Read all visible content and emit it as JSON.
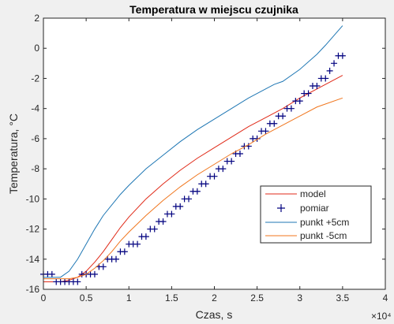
{
  "chart_data": {
    "type": "line",
    "title": "Temperatura w miejscu czujnika",
    "xlabel": "Czas, s",
    "ylabel": "Temperatura, °C",
    "x_exponent_label": "×10⁴",
    "xlim": [
      0,
      40000
    ],
    "ylim": [
      -16,
      2
    ],
    "xticks": [
      0,
      5000,
      10000,
      15000,
      20000,
      25000,
      30000,
      35000,
      40000
    ],
    "xtick_labels": [
      "0",
      "0.5",
      "1",
      "1.5",
      "2",
      "2.5",
      "3",
      "3.5",
      "4"
    ],
    "yticks": [
      -16,
      -14,
      -12,
      -10,
      -8,
      -6,
      -4,
      -2,
      0,
      2
    ],
    "ytick_labels": [
      "-16",
      "-14",
      "-12",
      "-10",
      "-8",
      "-6",
      "-4",
      "-2",
      "0",
      "2"
    ],
    "grid": false,
    "legend_position": "lower-right",
    "series": [
      {
        "name": "model",
        "style": "line",
        "color": "#e02a18",
        "x": [
          0,
          2000,
          3000,
          4000,
          5000,
          6000,
          7000,
          8000,
          9000,
          10000,
          12000,
          14000,
          16000,
          18000,
          20000,
          22000,
          24000,
          26000,
          28000,
          30000,
          32000,
          35000
        ],
        "y": [
          -15.5,
          -15.5,
          -15.4,
          -15.2,
          -14.8,
          -14.2,
          -13.5,
          -12.7,
          -11.9,
          -11.2,
          -10.0,
          -9.0,
          -8.1,
          -7.3,
          -6.6,
          -5.9,
          -5.2,
          -4.6,
          -4.0,
          -3.3,
          -2.7,
          -1.8
        ]
      },
      {
        "name": "pomiar",
        "style": "marker",
        "marker": "+",
        "color": "#00007f",
        "x": [
          0,
          500,
          1000,
          1500,
          2000,
          2500,
          3000,
          3500,
          4000,
          4500,
          5000,
          5500,
          6000,
          6500,
          7000,
          7500,
          8000,
          8500,
          9000,
          9500,
          10000,
          10500,
          11000,
          11500,
          12000,
          12500,
          13000,
          13500,
          14000,
          14500,
          15000,
          15500,
          16000,
          16500,
          17000,
          17500,
          18000,
          18500,
          19000,
          19500,
          20000,
          20500,
          21000,
          21500,
          22000,
          22500,
          23000,
          23500,
          24000,
          24500,
          25000,
          25500,
          26000,
          26500,
          27000,
          27500,
          28000,
          28500,
          29000,
          29500,
          30000,
          30500,
          31000,
          31500,
          32000,
          32500,
          33000,
          33500,
          34000,
          34500,
          35000
        ],
        "y": [
          -15.0,
          -15.0,
          -15.0,
          -15.5,
          -15.5,
          -15.5,
          -15.5,
          -15.5,
          -15.5,
          -15.0,
          -15.0,
          -15.0,
          -15.0,
          -14.5,
          -14.5,
          -14.0,
          -14.0,
          -14.0,
          -13.5,
          -13.5,
          -13.0,
          -13.0,
          -13.0,
          -12.5,
          -12.5,
          -12.0,
          -12.0,
          -11.5,
          -11.5,
          -11.0,
          -11.0,
          -10.5,
          -10.5,
          -10.0,
          -10.0,
          -9.5,
          -9.5,
          -9.0,
          -9.0,
          -8.5,
          -8.5,
          -8.0,
          -8.0,
          -7.5,
          -7.5,
          -7.0,
          -7.0,
          -6.5,
          -6.5,
          -6.0,
          -6.0,
          -5.5,
          -5.5,
          -5.0,
          -5.0,
          -4.5,
          -4.5,
          -4.0,
          -4.0,
          -3.5,
          -3.5,
          -3.0,
          -3.0,
          -2.5,
          -2.5,
          -2.0,
          -2.0,
          -1.5,
          -1.0,
          -0.5,
          -0.5
        ]
      },
      {
        "name": "punkt +5cm",
        "style": "line",
        "color": "#1f77b4",
        "x": [
          0,
          2000,
          3000,
          4000,
          5000,
          6000,
          7000,
          8000,
          9000,
          10000,
          12000,
          14000,
          16000,
          18000,
          20000,
          22000,
          24000,
          26000,
          27000,
          28000,
          30000,
          32000,
          33000,
          35000
        ],
        "y": [
          -15.2,
          -15.2,
          -14.8,
          -14.0,
          -13.0,
          -12.0,
          -11.1,
          -10.4,
          -9.7,
          -9.1,
          -8.0,
          -7.1,
          -6.2,
          -5.4,
          -4.7,
          -4.0,
          -3.3,
          -2.7,
          -2.4,
          -2.2,
          -1.4,
          -0.4,
          0.2,
          1.5
        ]
      },
      {
        "name": "punkt -5cm",
        "style": "line",
        "color": "#f0761e",
        "x": [
          0,
          2000,
          3000,
          4000,
          5000,
          6000,
          7000,
          8000,
          9000,
          10000,
          12000,
          14000,
          16000,
          18000,
          20000,
          22000,
          24000,
          26000,
          28000,
          30000,
          32000,
          35000
        ],
        "y": [
          -15.3,
          -15.3,
          -15.3,
          -15.2,
          -15.0,
          -14.6,
          -14.1,
          -13.5,
          -12.8,
          -12.2,
          -11.1,
          -10.1,
          -9.2,
          -8.4,
          -7.7,
          -7.0,
          -6.4,
          -5.7,
          -5.1,
          -4.5,
          -3.9,
          -3.3
        ]
      }
    ]
  }
}
